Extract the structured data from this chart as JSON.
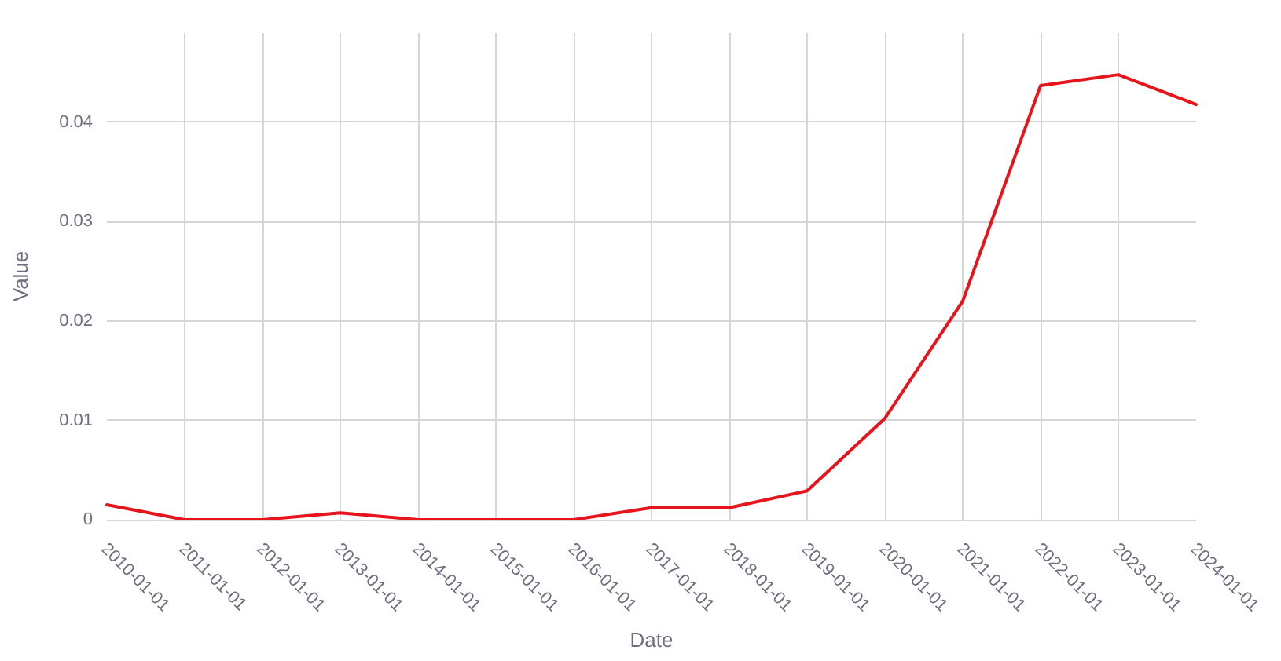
{
  "chart_data": {
    "type": "line",
    "xlabel": "Date",
    "ylabel": "Value",
    "categories": [
      "2010-01-01",
      "2011-01-01",
      "2012-01-01",
      "2013-01-01",
      "2014-01-01",
      "2015-01-01",
      "2016-01-01",
      "2017-01-01",
      "2018-01-01",
      "2019-01-01",
      "2020-01-01",
      "2021-01-01",
      "2022-01-01",
      "2023-01-01",
      "2024-01-01"
    ],
    "series": [
      {
        "color": "#e8141c",
        "values": [
          0.0015,
          0,
          0,
          0.0007,
          0,
          0,
          0,
          0.0012,
          0.0012,
          0.0029,
          0.0102,
          0.022,
          0.0437,
          0.0448,
          0.0418
        ]
      }
    ],
    "ylim": [
      0,
      0.049
    ],
    "yticks": [
      0,
      0.01,
      0.02,
      0.03,
      0.04
    ],
    "grid": true,
    "marker": "none",
    "line_style": "solid"
  }
}
